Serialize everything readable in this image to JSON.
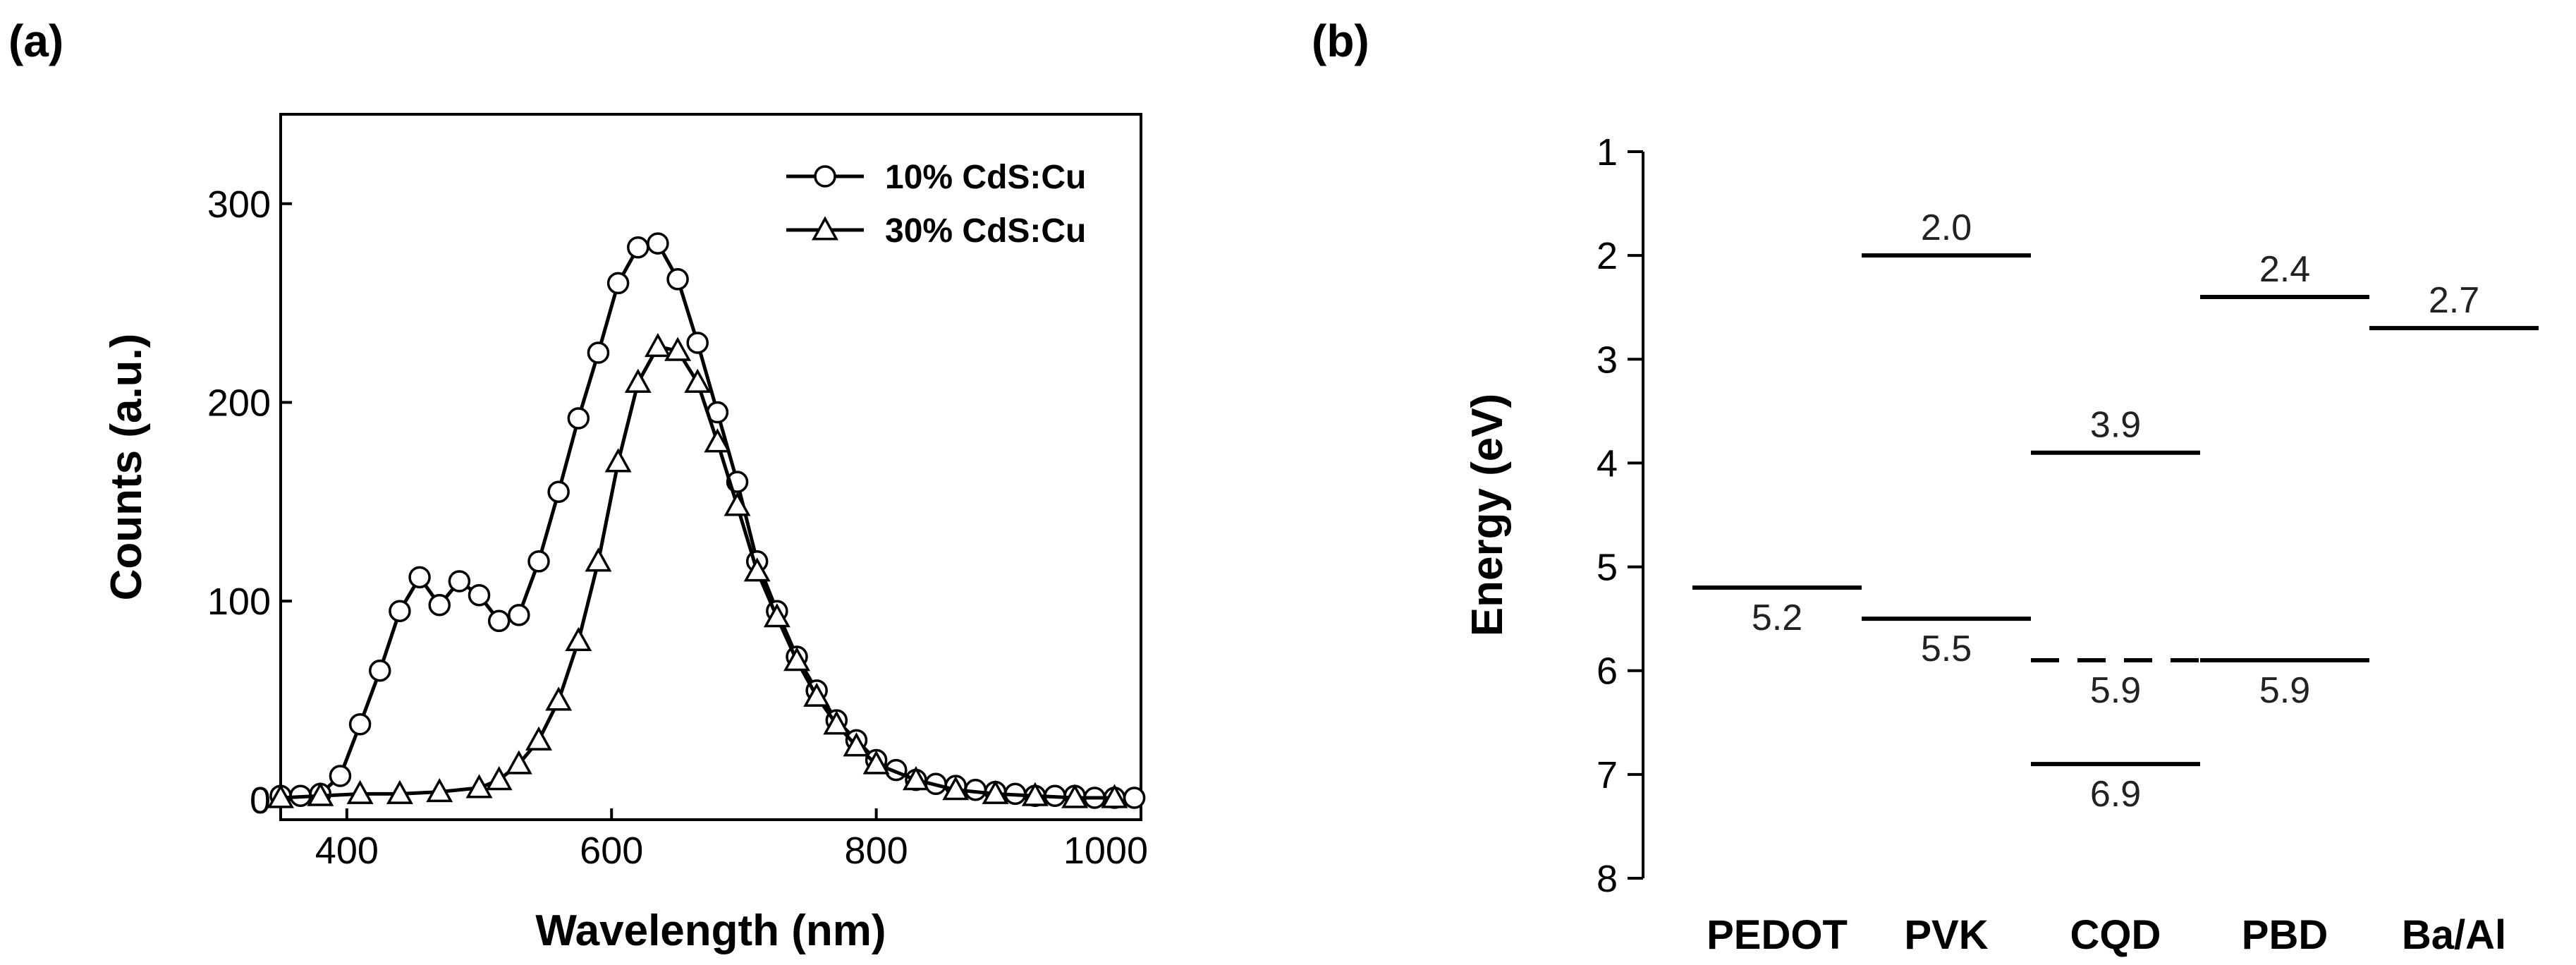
{
  "chart_data": [
    {
      "panel": "(a)",
      "type": "line",
      "title": "",
      "xlabel": "Wavelength (nm)",
      "ylabel": "Counts (a.u.)",
      "xlim": [
        350,
        1000
      ],
      "ylim": [
        -10,
        345
      ],
      "xticks": [
        400,
        600,
        800,
        1000
      ],
      "yticks": [
        0,
        100,
        200,
        300
      ],
      "xtick_labels": [
        "400",
        "600",
        "800",
        "1000"
      ],
      "ytick_labels": [
        "0",
        "100",
        "200",
        "300"
      ],
      "legend_position": "top-right",
      "series": [
        {
          "name": "10% CdS:Cu",
          "marker": "circle",
          "x": [
            350,
            365,
            380,
            395,
            410,
            425,
            440,
            455,
            470,
            485,
            500,
            515,
            530,
            545,
            560,
            575,
            590,
            605,
            620,
            635,
            650,
            665,
            680,
            695,
            710,
            725,
            740,
            755,
            770,
            785,
            800,
            815,
            830,
            845,
            860,
            875,
            890,
            905,
            920,
            935,
            950,
            965,
            980,
            995
          ],
          "y": [
            2,
            2,
            3,
            12,
            38,
            65,
            95,
            112,
            98,
            110,
            103,
            90,
            93,
            120,
            155,
            192,
            225,
            260,
            278,
            280,
            262,
            230,
            195,
            160,
            120,
            95,
            72,
            55,
            40,
            30,
            20,
            15,
            10,
            8,
            7,
            5,
            4,
            3,
            2,
            2,
            2,
            1,
            1,
            1
          ]
        },
        {
          "name": "30% CdS:Cu",
          "marker": "triangle",
          "x": [
            350,
            380,
            410,
            440,
            470,
            500,
            515,
            530,
            545,
            560,
            575,
            590,
            605,
            620,
            635,
            650,
            665,
            680,
            695,
            710,
            725,
            740,
            755,
            770,
            785,
            800,
            830,
            860,
            890,
            920,
            950,
            980
          ],
          "y": [
            1,
            2,
            3,
            3,
            4,
            6,
            10,
            18,
            30,
            50,
            80,
            120,
            170,
            210,
            228,
            226,
            210,
            180,
            148,
            115,
            92,
            70,
            52,
            38,
            27,
            18,
            10,
            5,
            3,
            2,
            1,
            1
          ]
        }
      ]
    },
    {
      "panel": "(b)",
      "type": "energy-level-diagram",
      "title": "",
      "xlabel": "",
      "ylabel": "Energy (eV)",
      "ylim": [
        1,
        8
      ],
      "yaxis_inverted": true,
      "yticks": [
        1,
        2,
        3,
        4,
        5,
        6,
        7,
        8
      ],
      "ytick_labels": [
        "1",
        "2",
        "3",
        "4",
        "5",
        "6",
        "7",
        "8"
      ],
      "materials": [
        "PEDOT",
        "PVK",
        "CQD",
        "PBD",
        "Ba/Al"
      ],
      "levels": [
        {
          "material": "PEDOT",
          "value": 5.2,
          "label": "5.2",
          "style": "solid",
          "label_position": "below"
        },
        {
          "material": "PVK",
          "value": 2.0,
          "label": "2.0",
          "style": "solid",
          "label_position": "above"
        },
        {
          "material": "PVK",
          "value": 5.5,
          "label": "5.5",
          "style": "solid",
          "label_position": "below"
        },
        {
          "material": "CQD",
          "value": 3.9,
          "label": "3.9",
          "style": "solid",
          "label_position": "above"
        },
        {
          "material": "CQD",
          "value": 5.9,
          "label": "5.9",
          "style": "dashed",
          "label_position": "below"
        },
        {
          "material": "CQD",
          "value": 6.9,
          "label": "6.9",
          "style": "solid",
          "label_position": "below"
        },
        {
          "material": "PBD",
          "value": 2.4,
          "label": "2.4",
          "style": "solid",
          "label_position": "above"
        },
        {
          "material": "PBD",
          "value": 5.9,
          "label": "5.9",
          "style": "solid",
          "label_position": "below"
        },
        {
          "material": "Ba/Al",
          "value": 2.7,
          "label": "2.7",
          "style": "solid",
          "label_position": "above"
        }
      ]
    }
  ]
}
